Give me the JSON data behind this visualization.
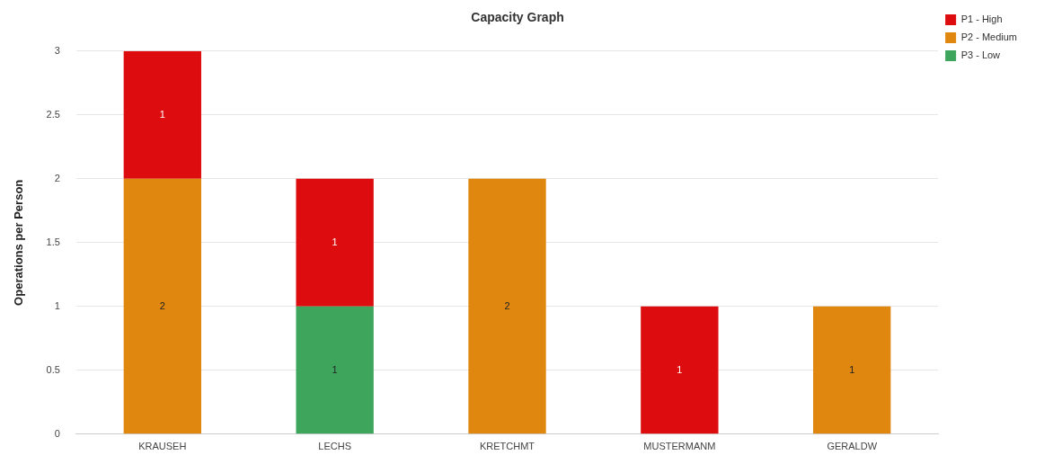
{
  "chart_data": {
    "type": "bar",
    "title": "Capacity Graph",
    "ylabel": "Operations per Person",
    "stacked": true,
    "categories": [
      "KRAUSEH",
      "LECHS",
      "KRETCHMT",
      "MUSTERMANM",
      "GERALDW"
    ],
    "series": [
      {
        "name": "P3 - Low",
        "color": "#3ea55c",
        "values": [
          null,
          1,
          null,
          null,
          null
        ]
      },
      {
        "name": "P2 - Medium",
        "color": "#df870e",
        "values": [
          2,
          null,
          2,
          null,
          1
        ]
      },
      {
        "name": "P1 - High",
        "color": "#dd0d0f",
        "values": [
          1,
          1,
          null,
          1,
          null
        ]
      }
    ],
    "ylim": [
      0,
      3
    ],
    "yticks": [
      0,
      0.5,
      1,
      1.5,
      2,
      2.5,
      3
    ],
    "grid": "y",
    "legend": "top right",
    "data_labels": true
  }
}
